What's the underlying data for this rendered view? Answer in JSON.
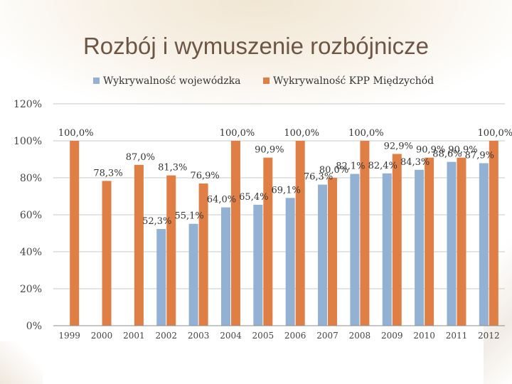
{
  "slide": {
    "title": "Rozbój i wymuszenie rozbójnicze"
  },
  "colors": {
    "series_1": "#93b1d2",
    "series_2": "#e07f45",
    "axis": "#8c8c8c",
    "text": "#333333"
  },
  "chart_data": {
    "type": "bar",
    "categories": [
      "1999",
      "2000",
      "2001",
      "2002",
      "2003",
      "2004",
      "2005",
      "2006",
      "2007",
      "2008",
      "2009",
      "2010",
      "2011",
      "2012"
    ],
    "series": [
      {
        "name": "Wykrywalność wojewódzka",
        "values": [
          null,
          null,
          null,
          52.3,
          55.1,
          64.0,
          65.4,
          69.1,
          76.3,
          82.1,
          82.4,
          84.3,
          88.6,
          87.9
        ],
        "labels": [
          "",
          "",
          "",
          "52,3%",
          "55,1%",
          "64,0%",
          "65,4%",
          "69,1%",
          "76,3%",
          "82,1%",
          "82,4%",
          "84,3%",
          "88,6%",
          "87,9%"
        ]
      },
      {
        "name": "Wykrywalność KPP Międzychód",
        "values": [
          100.0,
          78.3,
          87.0,
          81.3,
          76.9,
          100.0,
          90.9,
          100.0,
          80.0,
          100.0,
          92.9,
          90.9,
          90.9,
          100.0
        ],
        "labels": [
          "100,0%",
          "78,3%",
          "87,0%",
          "81,3%",
          "76,9%",
          "100,0%",
          "90,9%",
          "100,0%",
          "80,0%",
          "100,0%",
          "92,9%",
          "90,9%",
          "90,9%",
          "100,0%"
        ]
      }
    ],
    "yticks": [
      0,
      20,
      40,
      60,
      80,
      100,
      120
    ],
    "ytick_labels": [
      "0%",
      "20%",
      "40%",
      "60%",
      "80%",
      "100%",
      "120%"
    ],
    "ylim": [
      0,
      120
    ],
    "grid": true,
    "legend_position": "top"
  }
}
